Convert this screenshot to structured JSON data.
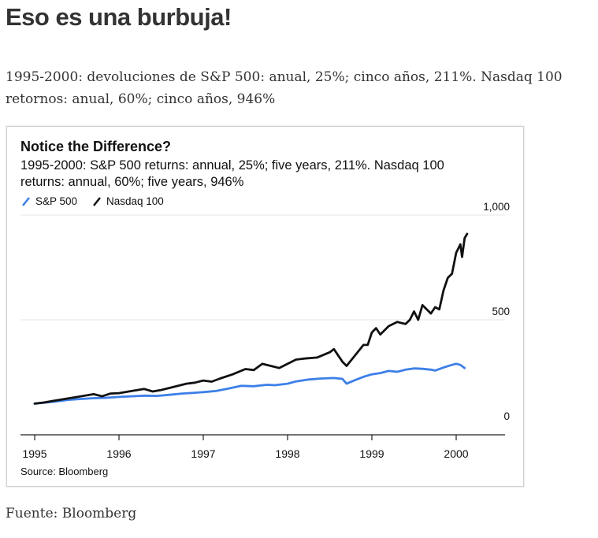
{
  "article": {
    "title": "Eso es una burbuja!",
    "intro": "1995-2000: devoluciones de S&P 500: anual, 25%; cinco años, 211%. Nasdaq 100 retornos: anual, 60%; cinco años, 946%",
    "footer": "Fuente: Bloomberg"
  },
  "chart_data": {
    "type": "line",
    "title": "Notice the Difference?",
    "subtitle_lines": [
      "1995-2000: S&P 500 returns: annual, 25%; five years, 211%. Nasdaq 100",
      "returns: annual, 60%; five years, 946%"
    ],
    "source": "Source: Bloomberg",
    "x_ticks": [
      "1995",
      "1996",
      "1997",
      "1998",
      "1999",
      "2000"
    ],
    "y_ticks": [
      "0",
      "500",
      "1,000"
    ],
    "ylim": [
      0,
      1000
    ],
    "xlim": [
      1995.0,
      2000.6
    ],
    "ylabel_position": "right",
    "grid": true,
    "colors": {
      "sp500": "#3d7fe8",
      "nasdaq": "#111111"
    },
    "series": [
      {
        "name": "S&P 500",
        "key": "sp500",
        "x": [
          1995.0,
          1995.1,
          1995.25,
          1995.4,
          1995.55,
          1995.7,
          1995.85,
          1996.0,
          1996.15,
          1996.3,
          1996.45,
          1996.6,
          1996.75,
          1996.9,
          1997.0,
          1997.15,
          1997.3,
          1997.45,
          1997.6,
          1997.75,
          1997.85,
          1998.0,
          1998.1,
          1998.25,
          1998.4,
          1998.55,
          1998.65,
          1998.7,
          1998.8,
          1998.9,
          1999.0,
          1999.1,
          1999.2,
          1999.3,
          1999.4,
          1999.5,
          1999.6,
          1999.7,
          1999.75,
          1999.85,
          1999.95,
          2000.0,
          2000.05,
          2000.1
        ],
        "values": [
          100,
          104,
          110,
          118,
          122,
          126,
          128,
          132,
          135,
          138,
          137,
          142,
          148,
          152,
          155,
          160,
          172,
          185,
          183,
          190,
          188,
          195,
          206,
          215,
          220,
          222,
          218,
          195,
          212,
          228,
          240,
          246,
          256,
          252,
          262,
          268,
          266,
          262,
          258,
          272,
          285,
          290,
          285,
          270
        ]
      },
      {
        "name": "Nasdaq 100",
        "key": "nasdaq",
        "x": [
          1995.0,
          1995.1,
          1995.25,
          1995.4,
          1995.55,
          1995.7,
          1995.8,
          1995.9,
          1996.0,
          1996.15,
          1996.3,
          1996.4,
          1996.5,
          1996.65,
          1996.8,
          1996.9,
          1997.0,
          1997.1,
          1997.2,
          1997.35,
          1997.5,
          1997.6,
          1997.7,
          1997.8,
          1997.9,
          1998.0,
          1998.1,
          1998.2,
          1998.35,
          1998.5,
          1998.55,
          1998.65,
          1998.7,
          1998.8,
          1998.9,
          1998.95,
          1999.0,
          1999.05,
          1999.1,
          1999.2,
          1999.3,
          1999.4,
          1999.45,
          1999.5,
          1999.55,
          1999.6,
          1999.7,
          1999.75,
          1999.8,
          1999.85,
          1999.9,
          1999.95,
          2000.0,
          2000.05,
          2000.07,
          2000.1,
          2000.13
        ],
        "values": [
          100,
          105,
          115,
          125,
          135,
          145,
          135,
          148,
          150,
          160,
          170,
          158,
          165,
          180,
          195,
          200,
          210,
          205,
          220,
          240,
          265,
          260,
          290,
          280,
          270,
          290,
          310,
          315,
          320,
          345,
          360,
          300,
          280,
          330,
          380,
          380,
          440,
          460,
          430,
          470,
          490,
          480,
          500,
          540,
          500,
          570,
          530,
          560,
          550,
          640,
          700,
          720,
          820,
          860,
          800,
          890,
          910
        ]
      }
    ]
  }
}
